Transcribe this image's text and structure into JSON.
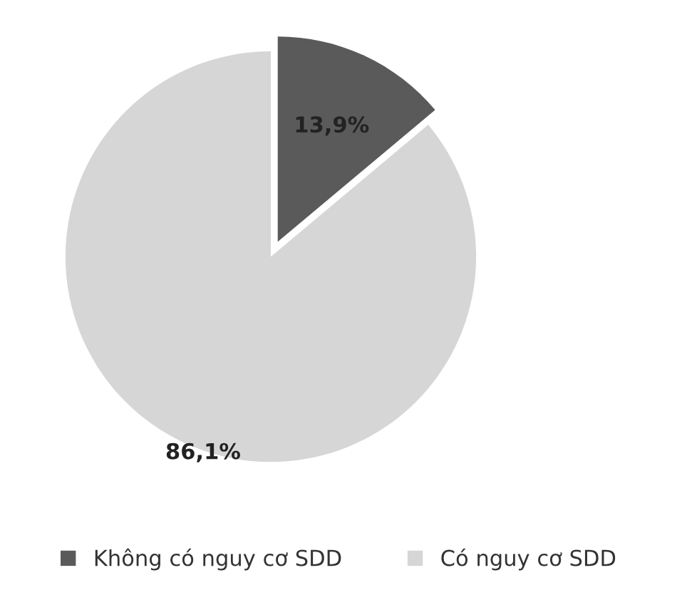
{
  "chart_data": {
    "type": "pie",
    "categories": [
      "Không có nguy cơ SDD",
      "Có nguy cơ SDD"
    ],
    "values": [
      13.9,
      86.1
    ],
    "colors": [
      "#5a5a5a",
      "#d6d6d6"
    ],
    "value_labels": [
      "13,9%",
      "86,1%"
    ],
    "legend": "bottom"
  }
}
